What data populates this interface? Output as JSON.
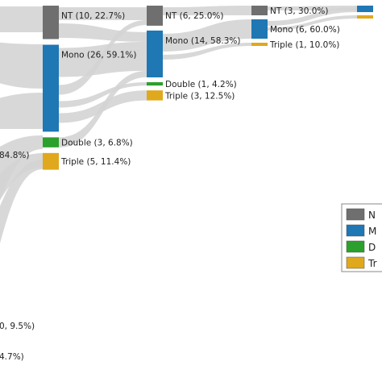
{
  "chart_data": {
    "type": "sankey",
    "colors": {
      "NT": "#6f6f6f",
      "Mono": "#1f77b4",
      "Double": "#2ca02c",
      "Triple": "#e0a81c",
      "link": "#d4d4d4"
    },
    "stages": [
      {
        "nodes": [
          {
            "category": "NT",
            "label": "NT (10, 22.7%)",
            "count": 10
          },
          {
            "category": "Mono",
            "label": "Mono (26, 59.1%)",
            "count": 26
          },
          {
            "category": "Double",
            "label": "Double (3, 6.8%)",
            "count": 3
          },
          {
            "category": "Triple",
            "label": "Triple (5, 11.4%)",
            "count": 5
          }
        ]
      },
      {
        "nodes": [
          {
            "category": "NT",
            "label": "NT (6, 25.0%)",
            "count": 6
          },
          {
            "category": "Mono",
            "label": "Mono (14, 58.3%)",
            "count": 14
          },
          {
            "category": "Double",
            "label": "Double (1, 4.2%)",
            "count": 1
          },
          {
            "category": "Triple",
            "label": "Triple (3, 12.5%)",
            "count": 3
          }
        ]
      },
      {
        "nodes": [
          {
            "category": "NT",
            "label": "NT (3, 30.0%)",
            "count": 3
          },
          {
            "category": "Mono",
            "label": "Mono (6, 60.0%)",
            "count": 6
          },
          {
            "category": "Triple",
            "label": "Triple (1, 10.0%)",
            "count": 1
          }
        ]
      },
      {
        "nodes": [
          {
            "category": "Mono",
            "label": "",
            "count": 2
          },
          {
            "category": "Triple",
            "label": "",
            "count": 1
          }
        ]
      }
    ],
    "partial_labels": [
      "84.8%)",
      "0, 9.5%)",
      "4.7%)"
    ],
    "legend": {
      "placement": "right",
      "entries": [
        {
          "category": "NT",
          "label": "N"
        },
        {
          "category": "Mono",
          "label": "M"
        },
        {
          "category": "Double",
          "label": "D"
        },
        {
          "category": "Triple",
          "label": "Tr"
        }
      ]
    }
  }
}
